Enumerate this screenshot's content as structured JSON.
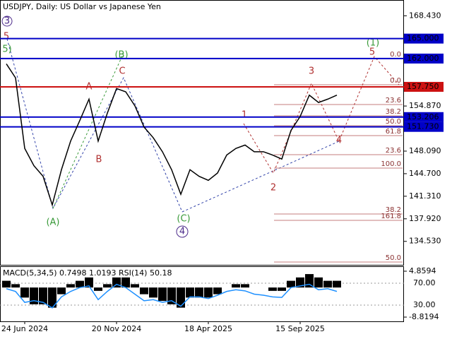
{
  "chart_data": [
    {
      "type": "line",
      "title": "USDJPY, Daily:  US Dollar vs Japanese Yen",
      "categories": [
        null,
        null,
        "24 Jun 2024",
        null,
        null,
        null,
        null,
        null,
        null,
        null,
        null,
        null,
        "20 Nov 2024",
        null,
        null,
        null,
        null,
        null,
        null,
        null,
        null,
        null,
        "18 Apr 2025",
        null,
        null,
        null,
        null,
        null,
        null,
        null,
        null,
        null,
        "15 Sep 2025",
        null,
        null,
        null,
        null
      ],
      "series": [
        {
          "color": "#000000",
          "values": [
            161.2,
            159.1,
            148.5,
            145.9,
            144.3,
            140.0,
            145.3,
            149.6,
            152.7,
            155.9,
            149.6,
            153.8,
            157.5,
            157.0,
            154.9,
            151.7,
            150.1,
            148.0,
            145.3,
            141.6,
            145.3,
            144.3,
            143.7,
            144.8,
            147.5,
            148.5,
            149.0,
            148.0,
            148.0,
            147.5,
            146.9,
            151.2,
            153.3,
            156.5,
            155.4,
            155.9,
            156.5
          ]
        }
      ],
      "ylim": [
        131.0,
        170.8
      ],
      "yticks": [
        {
          "value": 168.43,
          "label": "168.430"
        },
        {
          "value": 154.87,
          "label": "154.870"
        },
        {
          "value": 148.09,
          "label": "148.090"
        },
        {
          "value": 144.7,
          "label": "144.700"
        },
        {
          "value": 141.31,
          "label": "141.310"
        },
        {
          "value": 137.92,
          "label": "137.920"
        },
        {
          "value": 134.53,
          "label": "134.530"
        }
      ],
      "levels": [
        {
          "value": 165.0,
          "label": "165.000",
          "color": "#0000c8"
        },
        {
          "value": 162.0,
          "label": "162.000",
          "color": "#0000c8"
        },
        {
          "value": 157.75,
          "label": "157.750",
          "color": "#cc1111"
        },
        {
          "value": 153.206,
          "label": "153.206",
          "color": "#0000c8"
        },
        {
          "value": 151.73,
          "label": "151.730",
          "color": "#0000c8"
        }
      ],
      "wave_labels": [
        "3",
        "5",
        "5)",
        "(B)",
        "C",
        "A",
        "B",
        "(A)",
        "(C)",
        "4",
        "1",
        "2",
        "3",
        "4",
        "5",
        "(1)"
      ],
      "fib_labels": [
        "0.0",
        "0.0",
        "23.6",
        "38.2",
        "50.0",
        "61.8",
        "23.6",
        "100.0",
        "38.2",
        "161.8",
        "50.0"
      ]
    },
    {
      "type": "bar",
      "title": "MACD(5,34,5) 0.7498 1.0193 RSI(14) 50.18",
      "series": [
        {
          "color": "#000000",
          "values": [
            2,
            1,
            -3,
            -5,
            -5,
            -6,
            -2,
            1,
            2,
            3,
            -1,
            1,
            3,
            3,
            1,
            -2,
            -3,
            -4,
            -5,
            -6,
            -3,
            -3,
            -3,
            -2,
            0,
            1,
            1,
            0,
            0,
            -1,
            -1,
            2,
            3,
            4,
            3,
            2,
            2
          ]
        },
        {
          "color": "#1e90ff",
          "axis": "y2",
          "values": [
            60,
            55,
            35,
            38,
            35,
            25,
            45,
            55,
            62,
            65,
            40,
            55,
            68,
            62,
            50,
            38,
            40,
            35,
            38,
            28,
            45,
            45,
            42,
            48,
            55,
            58,
            56,
            50,
            48,
            45,
            44,
            62,
            65,
            68,
            58,
            60,
            55
          ]
        }
      ],
      "ylim": [
        -8.8194,
        4.8594
      ],
      "yticks": [
        {
          "value": 4.8594,
          "label": "4.8594"
        },
        {
          "value": -8.8194,
          "label": "-8.8194"
        }
      ],
      "y2lim": [
        8.1,
        91.9
      ],
      "y2ticks": [
        {
          "value": 70,
          "label": "70.00"
        },
        {
          "value": 30,
          "label": "30.00"
        }
      ]
    }
  ]
}
